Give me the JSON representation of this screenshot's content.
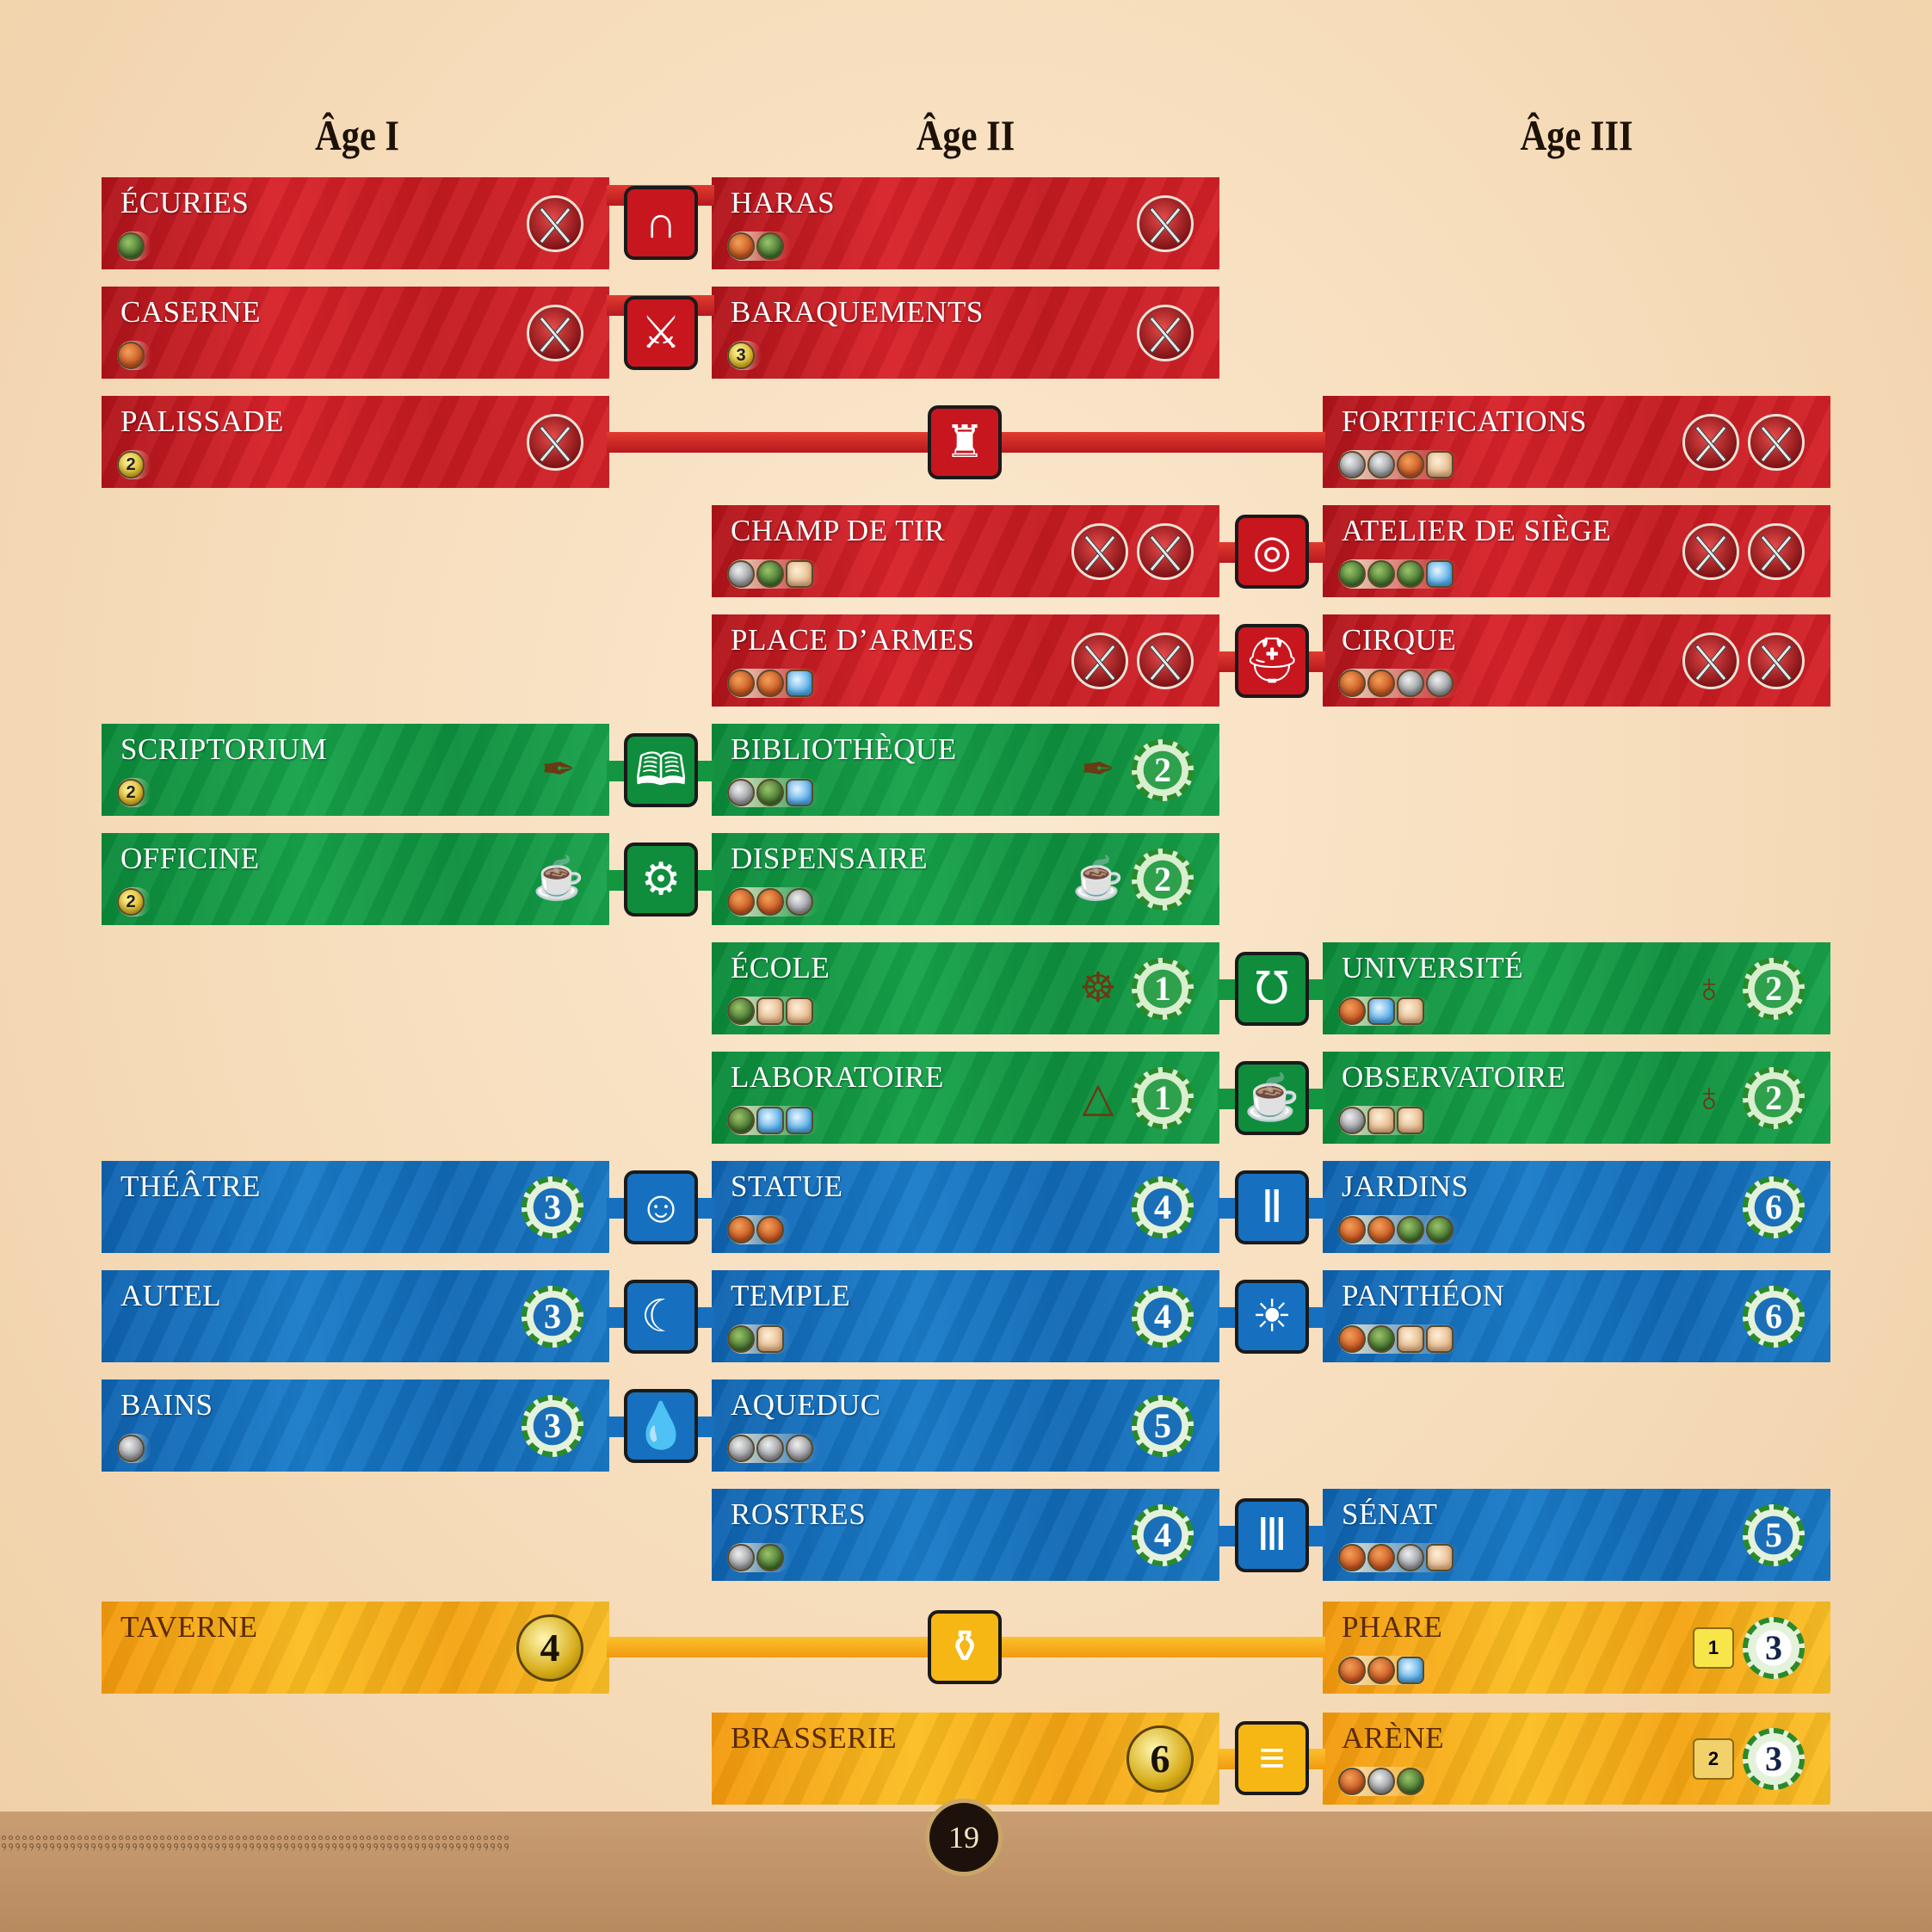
{
  "ages": [
    "Âge I",
    "Âge II",
    "Âge III"
  ],
  "cards": {
    "ecuries": {
      "name": "ÉCURIES",
      "cost": [
        {
          "t": "wood"
        }
      ]
    },
    "haras": {
      "name": "HARAS",
      "cost": [
        {
          "t": "clay"
        },
        {
          "t": "wood"
        }
      ]
    },
    "caserne": {
      "name": "CASERNE",
      "cost": [
        {
          "t": "clay"
        }
      ]
    },
    "baraquements": {
      "name": "BARAQUEMENTS",
      "cost": [
        {
          "t": "coin",
          "v": "3"
        }
      ]
    },
    "palissade": {
      "name": "PALISSADE",
      "cost": [
        {
          "t": "coin",
          "v": "2"
        }
      ]
    },
    "fortifications": {
      "name": "FORTIFICATIONS",
      "cost": [
        {
          "t": "stone"
        },
        {
          "t": "stone"
        },
        {
          "t": "clay"
        },
        {
          "t": "pap"
        }
      ]
    },
    "champ": {
      "name": "CHAMP DE TIR",
      "cost": [
        {
          "t": "stone"
        },
        {
          "t": "wood"
        },
        {
          "t": "pap"
        }
      ]
    },
    "atelier": {
      "name": "ATELIER DE SIÈGE",
      "cost": [
        {
          "t": "wood"
        },
        {
          "t": "wood"
        },
        {
          "t": "wood"
        },
        {
          "t": "glass"
        }
      ]
    },
    "place": {
      "name": "PLACE D’ARMES",
      "cost": [
        {
          "t": "clay"
        },
        {
          "t": "clay"
        },
        {
          "t": "glass"
        }
      ]
    },
    "cirque": {
      "name": "CIRQUE",
      "cost": [
        {
          "t": "clay"
        },
        {
          "t": "clay"
        },
        {
          "t": "stone"
        },
        {
          "t": "stone"
        }
      ]
    },
    "scriptorium": {
      "name": "SCRIPTORIUM",
      "cost": [
        {
          "t": "coin",
          "v": "2"
        }
      ]
    },
    "bibliotheque": {
      "name": "BIBLIOTHÈQUE",
      "cost": [
        {
          "t": "stone"
        },
        {
          "t": "wood"
        },
        {
          "t": "glass"
        }
      ],
      "vp": "2"
    },
    "officine": {
      "name": "OFFICINE",
      "cost": [
        {
          "t": "coin",
          "v": "2"
        }
      ]
    },
    "dispensaire": {
      "name": "DISPENSAIRE",
      "cost": [
        {
          "t": "clay"
        },
        {
          "t": "clay"
        },
        {
          "t": "stone"
        }
      ],
      "vp": "2"
    },
    "ecole": {
      "name": "ÉCOLE",
      "cost": [
        {
          "t": "wood"
        },
        {
          "t": "pap"
        },
        {
          "t": "pap"
        }
      ],
      "vp": "1"
    },
    "universite": {
      "name": "UNIVERSITÉ",
      "cost": [
        {
          "t": "clay"
        },
        {
          "t": "glass"
        },
        {
          "t": "pap"
        }
      ],
      "vp": "2"
    },
    "laboratoire": {
      "name": "LABORATOIRE",
      "cost": [
        {
          "t": "wood"
        },
        {
          "t": "glass"
        },
        {
          "t": "glass"
        }
      ],
      "vp": "1"
    },
    "observatoire": {
      "name": "OBSERVATOIRE",
      "cost": [
        {
          "t": "stone"
        },
        {
          "t": "pap"
        },
        {
          "t": "pap"
        }
      ],
      "vp": "2"
    },
    "theatre": {
      "name": "THÉÂTRE",
      "cost": [],
      "vp": "3"
    },
    "statue": {
      "name": "STATUE",
      "cost": [
        {
          "t": "clay"
        },
        {
          "t": "clay"
        }
      ],
      "vp": "4"
    },
    "jardins": {
      "name": "JARDINS",
      "cost": [
        {
          "t": "clay"
        },
        {
          "t": "clay"
        },
        {
          "t": "wood"
        },
        {
          "t": "wood"
        }
      ],
      "vp": "6"
    },
    "autel": {
      "name": "AUTEL",
      "cost": [],
      "vp": "3"
    },
    "temple": {
      "name": "TEMPLE",
      "cost": [
        {
          "t": "wood"
        },
        {
          "t": "pap"
        }
      ],
      "vp": "4"
    },
    "pantheon": {
      "name": "PANTHÉON",
      "cost": [
        {
          "t": "clay"
        },
        {
          "t": "wood"
        },
        {
          "t": "pap"
        },
        {
          "t": "pap"
        }
      ],
      "vp": "6"
    },
    "bains": {
      "name": "BAINS",
      "cost": [
        {
          "t": "stone"
        }
      ],
      "vp": "3"
    },
    "aqueduc": {
      "name": "AQUEDUC",
      "cost": [
        {
          "t": "stone"
        },
        {
          "t": "stone"
        },
        {
          "t": "stone"
        }
      ],
      "vp": "5"
    },
    "rostres": {
      "name": "ROSTRES",
      "cost": [
        {
          "t": "stone"
        },
        {
          "t": "wood"
        }
      ],
      "vp": "4"
    },
    "senat": {
      "name": "SÉNAT",
      "cost": [
        {
          "t": "clay"
        },
        {
          "t": "clay"
        },
        {
          "t": "stone"
        },
        {
          "t": "pap"
        }
      ],
      "vp": "5"
    },
    "taverne": {
      "name": "TAVERNE",
      "cost": [],
      "coins": "4"
    },
    "phare": {
      "name": "PHARE",
      "cost": [
        {
          "t": "clay"
        },
        {
          "t": "clay"
        },
        {
          "t": "glass"
        }
      ],
      "mini": "1",
      "vp": "3"
    },
    "brasserie": {
      "name": "BRASSERIE",
      "cost": [],
      "coins": "6"
    },
    "arene": {
      "name": "ARÈNE",
      "cost": [
        {
          "t": "clay"
        },
        {
          "t": "stone"
        },
        {
          "t": "wood"
        }
      ],
      "mini": "2",
      "vp": "3"
    }
  },
  "links": {
    "horseshoe": "horseshoe-icon",
    "sword": "sword-icon",
    "tower": "tower-icon",
    "target": "target-icon",
    "helmet": "helmet-icon",
    "book": "book-icon",
    "gear": "gear-icon",
    "lyre": "lyre-icon",
    "lamp": "lamp-icon",
    "mask": "mask-icon",
    "column": "column-icon",
    "moon": "moon-icon",
    "sun": "sun-icon",
    "drop": "drop-icon",
    "temple": "temple-icon",
    "amphora": "amphora-icon",
    "barrel": "barrel-icon"
  },
  "colors": {
    "military": "#c8161f",
    "science": "#0f8d3c",
    "civic": "#1670bf",
    "commercial": "#f6b614"
  },
  "page_number": "19",
  "meander": "ꟾ"
}
